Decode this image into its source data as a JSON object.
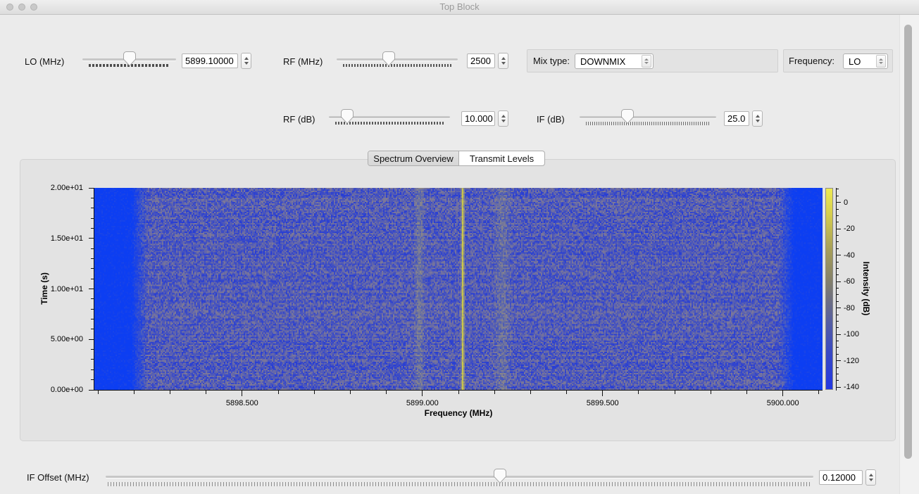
{
  "window": {
    "title": "Top Block"
  },
  "controls": {
    "lo": {
      "label": "LO (MHz)",
      "value": "5899.10000",
      "slider_pos": 0.5
    },
    "rf_freq": {
      "label": "RF (MHz)",
      "value": "2500",
      "slider_pos": 0.43
    },
    "mix_type": {
      "label": "Mix type:",
      "value": "DOWNMIX"
    },
    "frequency": {
      "label": "Frequency:",
      "value": "LO"
    },
    "rf_gain": {
      "label": "RF (dB)",
      "value": "10.000",
      "slider_pos": 0.15
    },
    "if_gain": {
      "label": "IF (dB)",
      "value": "25.0",
      "slider_pos": 0.35
    },
    "if_offset": {
      "label": "IF Offset (MHz)",
      "value": "0.12000",
      "slider_pos": 0.557
    }
  },
  "tabs": {
    "items": [
      {
        "label": "Spectrum Overview",
        "selected": true
      },
      {
        "label": "Transmit Levels",
        "selected": false
      }
    ]
  },
  "chart_data": {
    "type": "heatmap",
    "title": "",
    "xlabel": "Frequency (MHz)",
    "ylabel": "Time (s)",
    "colorbar_label": "Intensity (dB)",
    "x_range_mhz": [
      5898.09,
      5900.11
    ],
    "x_major_ticks_mhz": [
      5898.5,
      5899.0,
      5899.5,
      5900.0
    ],
    "x_tick_labels": [
      "5898.500",
      "5899.000",
      "5899.500",
      "5900.000"
    ],
    "x_minor_step_mhz": 0.1,
    "y_range_s": [
      0,
      20
    ],
    "y_tick_labels": [
      "2.00e+01",
      "1.50e+01",
      "1.00e+01",
      "5.00e+00",
      "0.00e+00"
    ],
    "colorbar_tick_db": [
      0,
      -20,
      -40,
      -60,
      -80,
      -100,
      -120,
      -140
    ],
    "colorbar_minor_step_db": 5,
    "colorbar_range_db": [
      11,
      -142
    ],
    "noise_floor_db": -95,
    "signals": [
      {
        "freq_mhz": 5899.11,
        "strength": 1.0,
        "width_mhz": 0.004,
        "note": "carrier"
      },
      {
        "freq_mhz": 5898.99,
        "strength": 0.22,
        "width_mhz": 0.012,
        "note": "faint tone"
      },
      {
        "freq_mhz": 5899.22,
        "strength": 0.18,
        "width_mhz": 0.02,
        "note": "faint tone"
      }
    ],
    "edge_bands_mhz": [
      [
        5898.09,
        5898.19
      ],
      [
        5900.03,
        5900.11
      ]
    ],
    "colormap": [
      "#2237e2",
      "#525ba6",
      "#868268",
      "#a8a058",
      "#eeea52"
    ],
    "legend_position": "right-colorbar",
    "grid": false
  }
}
